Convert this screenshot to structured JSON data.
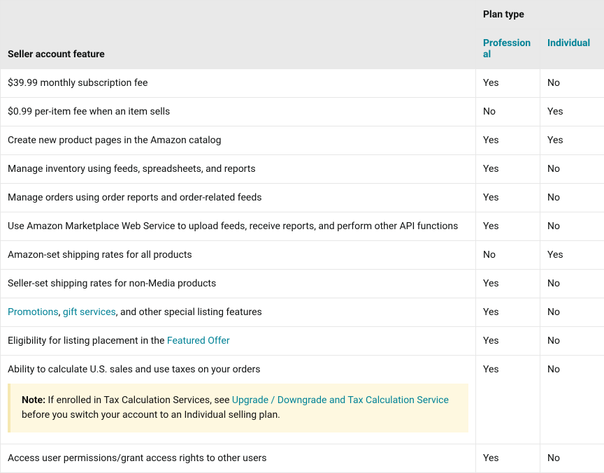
{
  "colors": {
    "header_bg": "#e9e9e9",
    "border": "#e7e7e7",
    "link": "#008296",
    "note_bg": "#fef8e0",
    "note_border": "#f6e8b1",
    "text": "#0f1111"
  },
  "header": {
    "feature_label": "Seller account feature",
    "plan_type_label": "Plan type",
    "plans": [
      "Professional",
      "Individual"
    ]
  },
  "rows": [
    {
      "feature": "$39.99 monthly subscription fee",
      "pro": "Yes",
      "ind": "No"
    },
    {
      "feature": "$0.99 per-item fee when an item sells",
      "pro": "No",
      "ind": "Yes"
    },
    {
      "feature": "Create new product pages in the Amazon catalog",
      "pro": "Yes",
      "ind": "Yes"
    },
    {
      "feature": "Manage inventory using feeds, spreadsheets, and reports",
      "pro": "Yes",
      "ind": "No"
    },
    {
      "feature": "Manage orders using order reports and order-related feeds",
      "pro": "Yes",
      "ind": "No"
    },
    {
      "feature": "Use Amazon Marketplace Web Service to upload feeds, receive reports, and perform other API functions",
      "pro": "Yes",
      "ind": "No"
    },
    {
      "feature": "Amazon-set shipping rates for all products",
      "pro": "No",
      "ind": "Yes"
    },
    {
      "feature": "Seller-set shipping rates for non-Media products",
      "pro": "Yes",
      "ind": "No"
    }
  ],
  "row_promotions": {
    "link1": "Promotions",
    "sep1": ", ",
    "link2": "gift services",
    "rest": ", and other special listing features",
    "pro": "Yes",
    "ind": "No"
  },
  "row_featured_offer": {
    "prefix": "Eligibility for listing placement in the ",
    "link": "Featured Offer",
    "pro": "Yes",
    "ind": "No"
  },
  "row_taxes": {
    "feature": "Ability to calculate U.S. sales and use taxes on your orders",
    "pro": "Yes",
    "ind": "No",
    "note": {
      "label": "Note:",
      "before": " If enrolled in Tax Calculation Services, see ",
      "link": "Upgrade / Downgrade and Tax Calculation Service",
      "after": " before you switch your account to an Individual selling plan."
    }
  },
  "row_permissions": {
    "feature": "Access user permissions/grant access rights to other users",
    "pro": "Yes",
    "ind": "No"
  }
}
